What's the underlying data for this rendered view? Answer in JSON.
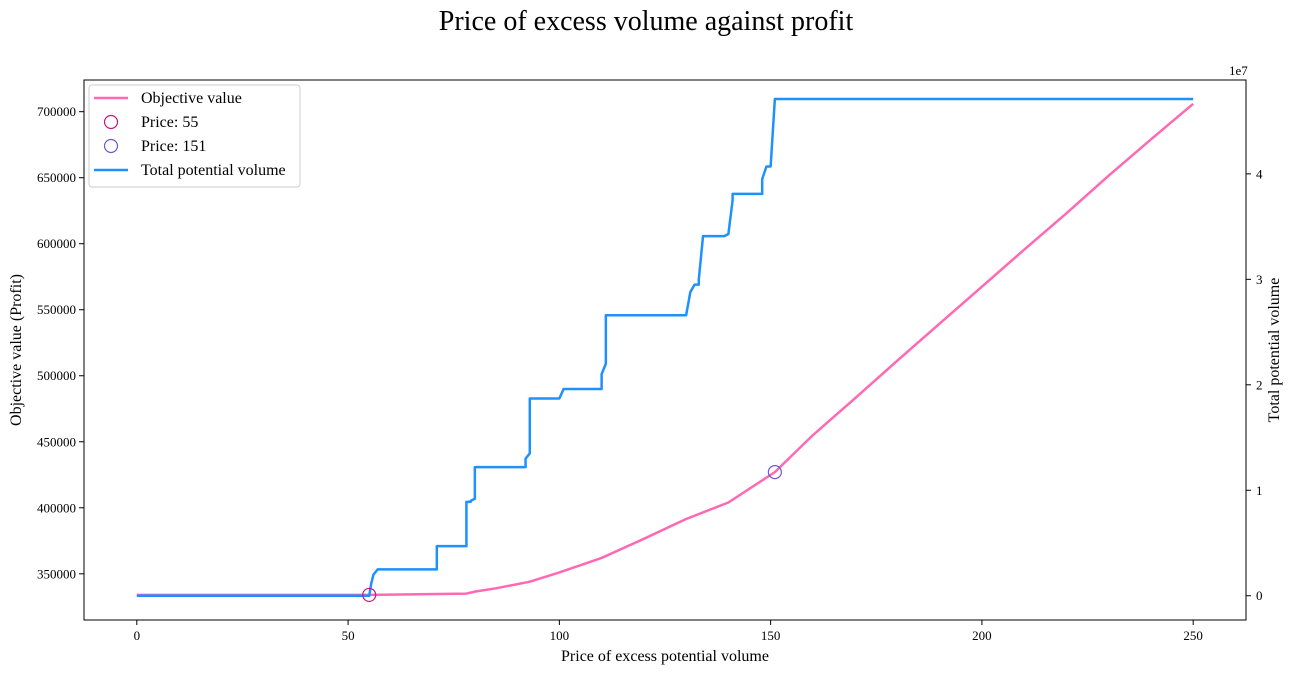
{
  "chart_data": {
    "type": "line",
    "title": "Price of excess volume against profit",
    "xlabel": "Price of excess potential volume",
    "ylabel": "Objective value (Profit)",
    "ylabel_right": "Total potential volume",
    "right_axis_offset_text": "1e7",
    "xlim": [
      -12.5,
      262.5
    ],
    "ylim": [
      315000,
      724000
    ],
    "ylim_right": [
      -2300000,
      48900000
    ],
    "x_ticks": [
      0,
      50,
      100,
      150,
      200,
      250
    ],
    "y_ticks": [
      350000,
      400000,
      450000,
      500000,
      550000,
      600000,
      650000,
      700000
    ],
    "y_ticks_right": [
      0,
      1,
      2,
      3,
      4
    ],
    "legend_position": "upper left",
    "grid": false,
    "series": [
      {
        "name": "Objective value",
        "axis": "left",
        "color": "#ff69b4",
        "x": [
          0,
          55,
          78,
          80,
          85,
          93,
          100,
          110,
          120,
          130,
          140,
          151,
          160,
          170,
          180,
          190,
          200,
          210,
          220,
          230,
          240,
          250
        ],
        "y": [
          334000,
          334000,
          335000,
          336500,
          339000,
          344000,
          351000,
          362000,
          376500,
          391500,
          404000,
          427000,
          455000,
          483000,
          511500,
          539500,
          567500,
          595500,
          623000,
          651500,
          679000,
          706000
        ]
      },
      {
        "name": "Total potential volume",
        "axis": "right",
        "color": "#1e90ff",
        "x": [
          0,
          55,
          55.5,
          56,
          57,
          71,
          71,
          78,
          78,
          79,
          79,
          80,
          80,
          92,
          92,
          93,
          93,
          100,
          101,
          110,
          110,
          111,
          111,
          130,
          131,
          132,
          133,
          133,
          134,
          134,
          139,
          140,
          140,
          141,
          141,
          148,
          148,
          149,
          149,
          150,
          151,
          250
        ],
        "y": [
          0,
          0,
          1200000,
          2000000,
          2500000,
          2500000,
          4700000,
          4700000,
          8900000,
          8900000,
          9000000,
          9200000,
          12200000,
          12200000,
          13000000,
          13500000,
          18700000,
          18700000,
          19600000,
          19600000,
          21000000,
          22000000,
          26600000,
          26600000,
          28800000,
          29500000,
          29500000,
          30000000,
          34100000,
          34100000,
          34100000,
          34300000,
          34300000,
          37500000,
          38100000,
          38100000,
          39500000,
          40700000,
          40700000,
          40700000,
          47100000,
          47100000
        ]
      }
    ],
    "markers": [
      {
        "name": "Price: 55",
        "axis": "left",
        "x": 55,
        "y": 334000,
        "color": "#c71585"
      },
      {
        "name": "Price: 151",
        "axis": "left",
        "x": 151,
        "y": 427000,
        "color": "#6a5acd"
      }
    ]
  }
}
